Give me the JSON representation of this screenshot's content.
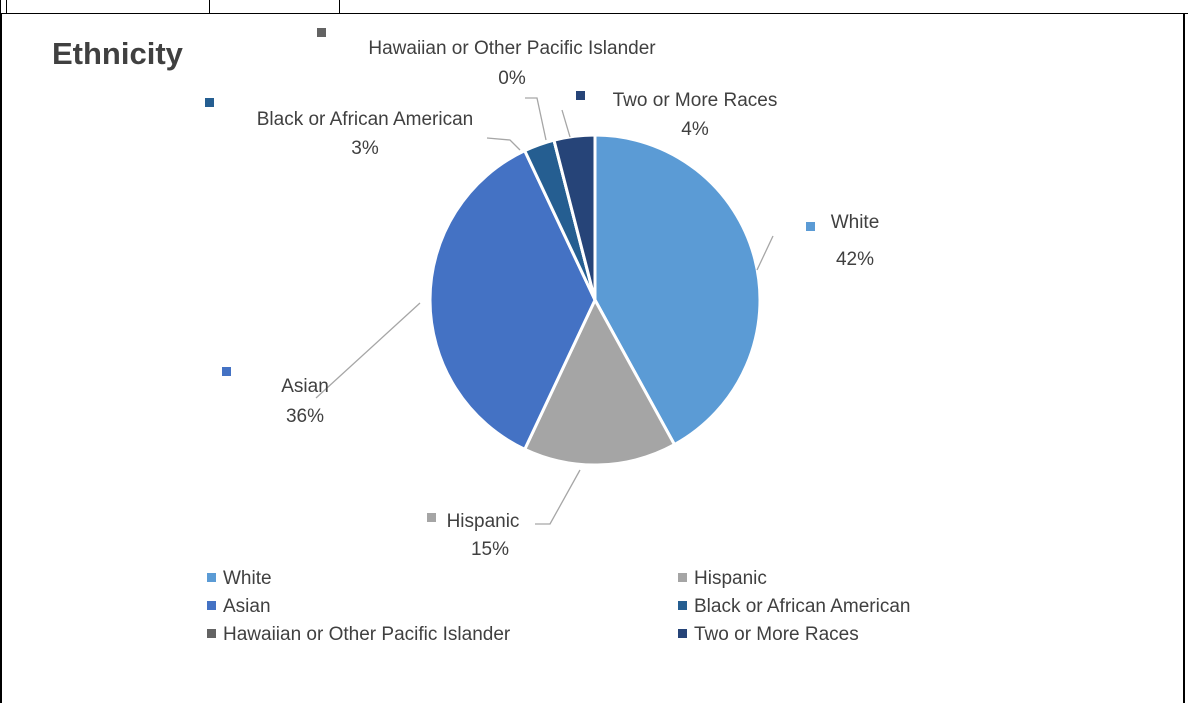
{
  "chart_data": {
    "type": "pie",
    "title": "Ethnicity",
    "legend_position": "bottom",
    "slices": [
      {
        "label": "White",
        "value": 42,
        "display": "42%",
        "color": "#5b9bd5"
      },
      {
        "label": "Hispanic",
        "value": 15,
        "display": "15%",
        "color": "#a5a5a5"
      },
      {
        "label": "Asian",
        "value": 36,
        "display": "36%",
        "color": "#4472c4"
      },
      {
        "label": "Black or African American",
        "value": 3,
        "display": "3%",
        "color": "#255e91"
      },
      {
        "label": "Hawaiian or Other Pacific Islander",
        "value": 0,
        "display": "0%",
        "color": "#636363"
      },
      {
        "label": "Two or More Races",
        "value": 4,
        "display": "4%",
        "color": "#264478"
      }
    ]
  }
}
